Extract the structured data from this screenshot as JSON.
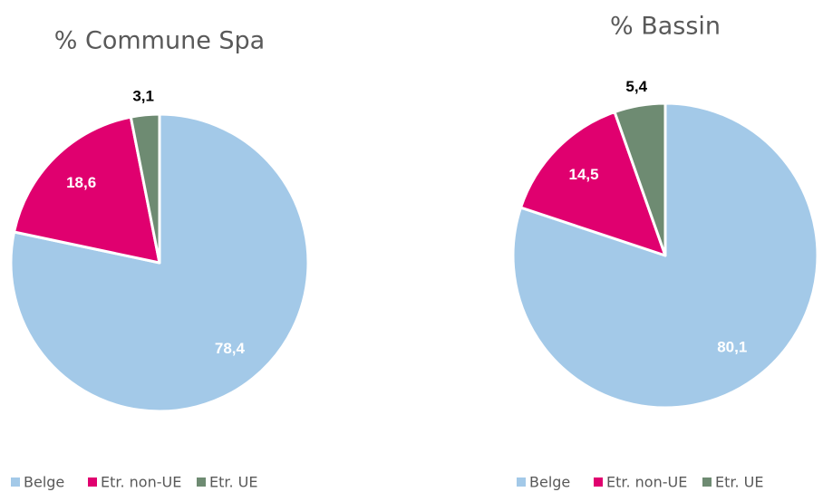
{
  "chart_data": [
    {
      "type": "pie",
      "title": "% Commune Spa",
      "categories": [
        "Belge",
        "Etr. non-UE",
        "Etr. UE"
      ],
      "values": [
        78.4,
        18.6,
        3.1
      ],
      "value_labels": [
        "78,4",
        "18,6",
        "3,1"
      ],
      "colors": [
        "#a3c9e8",
        "#e0006f",
        "#6e8b72"
      ],
      "legend": "bottom"
    },
    {
      "type": "pie",
      "title": "% Bassin",
      "categories": [
        "Belge",
        "Etr. non-UE",
        "Etr. UE"
      ],
      "values": [
        80.1,
        14.5,
        5.4
      ],
      "value_labels": [
        "80,1",
        "14,5",
        "5,4"
      ],
      "colors": [
        "#a3c9e8",
        "#e0006f",
        "#6e8b72"
      ],
      "legend": "bottom"
    }
  ]
}
